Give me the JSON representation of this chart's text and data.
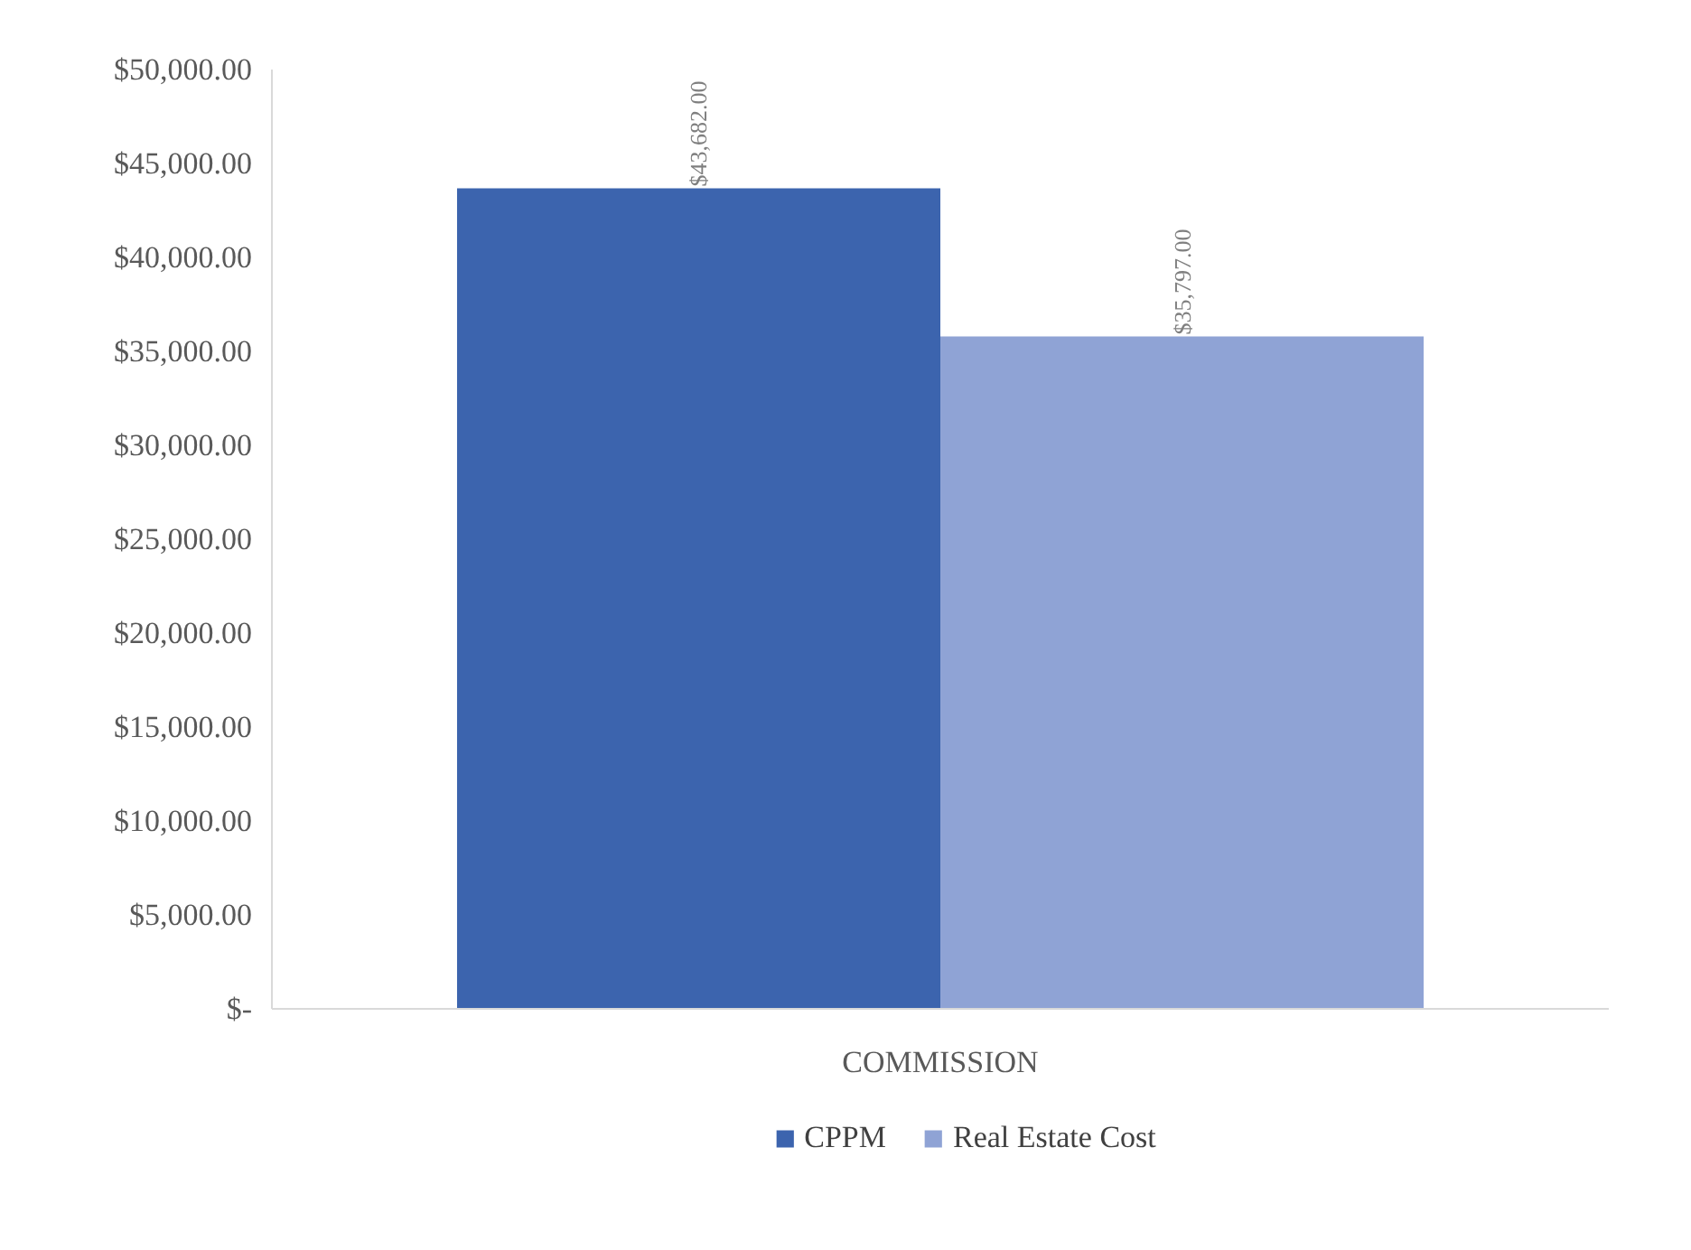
{
  "chart_data": {
    "type": "bar",
    "categories": [
      "COMMISSION"
    ],
    "series": [
      {
        "name": "CPPM",
        "color": "#3c64ae",
        "values": [
          43682
        ],
        "value_labels": [
          "$43,682.00"
        ]
      },
      {
        "name": "Real Estate Cost",
        "color": "#8fa3d5",
        "values": [
          35797
        ],
        "value_labels": [
          "$35,797.00"
        ]
      }
    ],
    "ylim": [
      0,
      50000
    ],
    "yticks": [
      {
        "value": 0,
        "label": "$-"
      },
      {
        "value": 5000,
        "label": "$5,000.00"
      },
      {
        "value": 10000,
        "label": "$10,000.00"
      },
      {
        "value": 15000,
        "label": "$15,000.00"
      },
      {
        "value": 20000,
        "label": "$20,000.00"
      },
      {
        "value": 25000,
        "label": "$25,000.00"
      },
      {
        "value": 30000,
        "label": "$30,000.00"
      },
      {
        "value": 35000,
        "label": "$35,000.00"
      },
      {
        "value": 40000,
        "label": "$40,000.00"
      },
      {
        "value": 45000,
        "label": "$45,000.00"
      },
      {
        "value": 50000,
        "label": "$50,000.00"
      }
    ],
    "grid": false,
    "legend": "bottom"
  }
}
